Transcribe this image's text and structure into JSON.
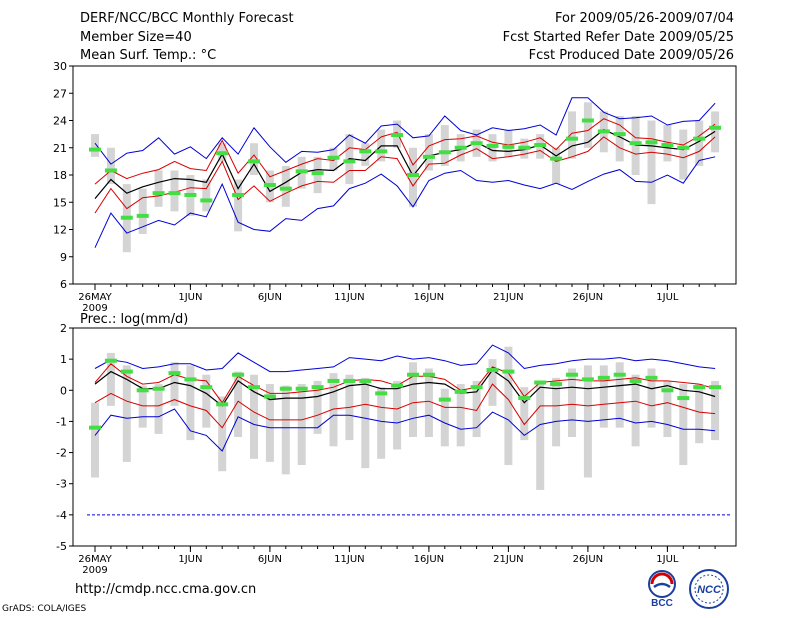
{
  "header": {
    "title": "DERF/NCC/BCC Monthly Forecast",
    "member_size": "Member Size=40",
    "variable": "Mean Surf. Temp.: °C",
    "period": "For 2009/05/26-2009/07/04",
    "started": "Fcst Started Refer Date 2009/05/25",
    "produced": "Fcst Produced Date 2009/05/26"
  },
  "footer": {
    "url": "http://cmdp.ncc.cma.gov.cn",
    "credit": "GrADS: COLA/IGES"
  },
  "logos": {
    "bcc_text": "BCC",
    "ncc_text": "NCC"
  },
  "colors": {
    "envelope": "#0000d8",
    "spread": "#d80000",
    "mean": "#000000",
    "observed": "#44dd44",
    "box": "#d4d4d4"
  },
  "chart_data": [
    {
      "type": "box-ensemble",
      "title": "Mean Surf. Temp.: °C",
      "xlabel_extra": "2009",
      "xlim": [
        0,
        40
      ],
      "ylim": [
        6,
        30
      ],
      "yticks": [
        6,
        9,
        12,
        15,
        18,
        21,
        24,
        27,
        30
      ],
      "xticks": [
        {
          "day": 0,
          "label": "26MAY"
        },
        {
          "day": 6,
          "label": "1JUN"
        },
        {
          "day": 11,
          "label": "6JUN"
        },
        {
          "day": 16,
          "label": "11JUN"
        },
        {
          "day": 21,
          "label": "16JUN"
        },
        {
          "day": 26,
          "label": "21JUN"
        },
        {
          "day": 31,
          "label": "26JUN"
        },
        {
          "day": 36,
          "label": "1JUL"
        }
      ],
      "series": [
        {
          "name": "max",
          "values": [
            10.0,
            13.8,
            11.6,
            12.3,
            13.0,
            12.5,
            13.8,
            13.4,
            17.0,
            12.8,
            12.0,
            11.8,
            13.2,
            13.0,
            14.3,
            14.6,
            16.5,
            17.1,
            18.1,
            16.8,
            14.5,
            17.4,
            18.2,
            18.5,
            17.4,
            17.2,
            17.4,
            16.9,
            16.5,
            17.1,
            16.4,
            17.3,
            18.1,
            18.6,
            17.3,
            17.2,
            18.0,
            17.1,
            19.6,
            20.0
          ]
        },
        {
          "name": "p25",
          "values": [
            13.8,
            16.5,
            14.3,
            15.5,
            15.7,
            16.1,
            16.6,
            16.5,
            19.5,
            15.3,
            16.8,
            15.1,
            16.0,
            16.8,
            17.3,
            17.2,
            18.5,
            18.5,
            20.0,
            19.8,
            16.8,
            19.2,
            19.3,
            20.2,
            20.9,
            19.8,
            20.0,
            20.3,
            20.7,
            19.5,
            20.0,
            20.6,
            22.2,
            21.0,
            20.3,
            20.5,
            20.3,
            19.9,
            20.6,
            22.2
          ]
        },
        {
          "name": "mean",
          "values": [
            15.4,
            17.5,
            16.0,
            16.7,
            17.2,
            17.6,
            17.5,
            17.2,
            20.3,
            16.5,
            19.2,
            16.2,
            17.2,
            18.3,
            18.6,
            18.5,
            19.8,
            19.6,
            21.2,
            21.2,
            17.9,
            20.1,
            20.5,
            20.8,
            21.6,
            20.7,
            20.6,
            20.8,
            21.3,
            20.1,
            21.2,
            21.6,
            23.0,
            22.2,
            21.3,
            21.2,
            21.0,
            20.8,
            21.7,
            22.8
          ]
        },
        {
          "name": "p75",
          "values": [
            17.0,
            18.5,
            17.6,
            18.2,
            18.6,
            19.5,
            18.7,
            18.5,
            21.8,
            18.2,
            20.2,
            17.8,
            18.5,
            19.2,
            19.8,
            19.6,
            21.0,
            20.8,
            22.2,
            22.7,
            19.1,
            21.2,
            21.9,
            22.0,
            22.3,
            21.6,
            21.3,
            21.6,
            22.1,
            20.8,
            22.6,
            22.9,
            24.2,
            23.5,
            22.1,
            22.0,
            21.6,
            21.3,
            22.3,
            23.6
          ]
        },
        {
          "name": "min",
          "values": [
            21.5,
            19.2,
            20.4,
            20.7,
            22.1,
            20.3,
            21.1,
            19.8,
            22.1,
            20.3,
            23.2,
            21.1,
            19.4,
            20.6,
            20.5,
            20.8,
            22.4,
            21.5,
            23.4,
            23.6,
            22.1,
            22.3,
            24.5,
            22.9,
            22.4,
            23.2,
            22.9,
            23.1,
            23.5,
            22.4,
            26.5,
            26.5,
            24.9,
            24.2,
            24.3,
            24.5,
            23.5,
            23.9,
            24.0,
            25.9
          ]
        },
        {
          "name": "observed",
          "values": [
            20.8,
            18.5,
            13.3,
            13.5,
            16.0,
            16.0,
            15.8,
            15.2,
            20.4,
            15.8,
            19.5,
            16.9,
            16.5,
            18.4,
            18.2,
            19.9,
            19.5,
            20.6,
            20.6,
            22.4,
            18.0,
            20.0,
            20.5,
            21.0,
            21.5,
            21.2,
            21.1,
            21.0,
            21.3,
            19.8,
            22.0,
            24.0,
            22.8,
            22.5,
            21.5,
            21.6,
            21.3,
            21.0,
            22.0,
            23.2
          ]
        },
        {
          "name": "box_low",
          "values": [
            20.0,
            17.0,
            9.5,
            11.5,
            14.5,
            14.0,
            13.5,
            14.0,
            19.5,
            11.8,
            18.0,
            15.0,
            14.5,
            16.5,
            16.0,
            18.5,
            17.0,
            19.0,
            19.5,
            21.0,
            14.5,
            18.5,
            19.0,
            19.5,
            20.0,
            19.5,
            20.0,
            19.8,
            19.8,
            17.0,
            19.8,
            21.0,
            20.5,
            19.5,
            18.0,
            14.8,
            19.5,
            17.5,
            19.0,
            20.5
          ]
        },
        {
          "name": "box_high",
          "values": [
            22.5,
            21.0,
            17.0,
            16.5,
            18.5,
            18.5,
            18.0,
            17.5,
            21.5,
            17.5,
            21.5,
            18.5,
            19.0,
            20.0,
            20.0,
            21.0,
            22.5,
            21.5,
            23.0,
            24.0,
            21.0,
            22.5,
            23.5,
            22.5,
            23.0,
            22.5,
            23.0,
            22.0,
            22.5,
            21.0,
            25.0,
            26.0,
            25.0,
            24.5,
            24.5,
            24.0,
            23.5,
            23.0,
            24.0,
            25.0
          ]
        }
      ]
    },
    {
      "type": "box-ensemble",
      "title": "Prec.: log(mm/d)",
      "xlabel_extra": "2009",
      "xlim": [
        0,
        40
      ],
      "ylim": [
        -5,
        2
      ],
      "yticks": [
        -5,
        -4,
        -3,
        -2,
        -1,
        0,
        1,
        2
      ],
      "xticks": [
        {
          "day": 0,
          "label": "26MAY"
        },
        {
          "day": 6,
          "label": "1JUN"
        },
        {
          "day": 11,
          "label": "6JUN"
        },
        {
          "day": 16,
          "label": "11JUN"
        },
        {
          "day": 21,
          "label": "16JUN"
        },
        {
          "day": 26,
          "label": "21JUN"
        },
        {
          "day": 31,
          "label": "26JUN"
        },
        {
          "day": 36,
          "label": "1JUL"
        }
      ],
      "series": [
        {
          "name": "max",
          "values": [
            0.7,
            0.98,
            0.9,
            0.7,
            0.75,
            0.85,
            0.85,
            0.65,
            0.7,
            1.2,
            0.9,
            0.6,
            0.6,
            0.65,
            0.7,
            0.75,
            1.05,
            1.0,
            0.95,
            1.1,
            1.0,
            1.05,
            0.95,
            0.8,
            0.85,
            1.45,
            1.2,
            0.7,
            0.8,
            0.85,
            0.95,
            1.0,
            1.0,
            1.05,
            0.95,
            1.0,
            0.95,
            0.85,
            0.75,
            0.7
          ]
        },
        {
          "name": "p75",
          "values": [
            0.25,
            0.85,
            0.45,
            0.2,
            0.25,
            0.5,
            0.35,
            0.3,
            -0.4,
            0.45,
            0.15,
            -0.1,
            -0.1,
            -0.05,
            0.0,
            0.1,
            0.3,
            0.35,
            0.3,
            0.15,
            0.45,
            0.45,
            0.35,
            0.0,
            0.1,
            0.75,
            0.55,
            -0.2,
            0.25,
            0.3,
            0.35,
            0.3,
            0.3,
            0.35,
            0.4,
            0.3,
            0.3,
            0.25,
            0.2,
            0.05
          ]
        },
        {
          "name": "mean",
          "values": [
            0.2,
            0.6,
            0.35,
            0.05,
            0.05,
            0.25,
            0.15,
            -0.1,
            -0.5,
            0.3,
            -0.05,
            -0.3,
            -0.25,
            -0.25,
            -0.2,
            -0.05,
            0.15,
            0.2,
            0.05,
            0.05,
            0.2,
            0.25,
            0.2,
            -0.1,
            -0.05,
            0.65,
            0.3,
            -0.4,
            0.1,
            0.05,
            0.1,
            0.05,
            0.1,
            0.15,
            0.2,
            0.05,
            0.15,
            0.0,
            -0.05,
            -0.2
          ]
        },
        {
          "name": "p25",
          "values": [
            -0.4,
            -0.1,
            -0.35,
            -0.5,
            -0.5,
            -0.3,
            -0.5,
            -0.65,
            -1.2,
            -0.35,
            -0.7,
            -0.95,
            -0.95,
            -0.95,
            -0.8,
            -0.6,
            -0.55,
            -0.45,
            -0.55,
            -0.6,
            -0.4,
            -0.35,
            -0.55,
            -0.55,
            -0.65,
            0.2,
            -0.3,
            -1.1,
            -0.5,
            -0.5,
            -0.45,
            -0.5,
            -0.45,
            -0.4,
            -0.35,
            -0.5,
            -0.4,
            -0.55,
            -0.7,
            -0.75
          ]
        },
        {
          "name": "min",
          "values": [
            -1.45,
            -0.8,
            -0.9,
            -0.85,
            -0.85,
            -0.6,
            -1.3,
            -1.45,
            -1.95,
            -0.85,
            -1.1,
            -1.2,
            -1.2,
            -1.2,
            -1.2,
            -0.8,
            -0.8,
            -0.9,
            -1.0,
            -1.05,
            -0.9,
            -0.8,
            -1.05,
            -1.25,
            -1.2,
            -0.7,
            -0.95,
            -1.45,
            -1.1,
            -1.0,
            -0.95,
            -1.0,
            -0.95,
            -0.9,
            -1.05,
            -1.0,
            -1.1,
            -1.25,
            -1.25,
            -1.3
          ]
        },
        {
          "name": "observed",
          "values": [
            -1.2,
            0.95,
            0.6,
            0.0,
            0.05,
            0.55,
            0.35,
            0.1,
            -0.45,
            0.5,
            0.1,
            -0.2,
            0.05,
            0.05,
            0.1,
            0.3,
            0.3,
            0.3,
            -0.1,
            0.15,
            0.5,
            0.5,
            -0.3,
            -0.05,
            0.1,
            0.65,
            0.6,
            -0.25,
            0.25,
            0.2,
            0.5,
            0.35,
            0.4,
            0.5,
            0.3,
            0.4,
            0.0,
            -0.25,
            0.1,
            0.1
          ]
        },
        {
          "name": "box_low",
          "values": [
            -2.8,
            -0.5,
            -2.3,
            -1.2,
            -1.4,
            -0.5,
            -1.6,
            -1.2,
            -2.6,
            -1.5,
            -2.2,
            -2.3,
            -2.7,
            -2.4,
            -1.4,
            -1.8,
            -1.6,
            -2.5,
            -2.2,
            -1.9,
            -1.5,
            -1.5,
            -1.8,
            -1.8,
            -1.5,
            -0.5,
            -2.4,
            -1.6,
            -3.2,
            -1.8,
            -1.5,
            -2.8,
            -1.2,
            -1.2,
            -1.8,
            -1.2,
            -1.5,
            -2.4,
            -1.7,
            -1.6
          ]
        },
        {
          "name": "box_high",
          "values": [
            -0.4,
            1.2,
            0.8,
            0.15,
            0.2,
            0.9,
            0.8,
            0.5,
            -0.2,
            0.6,
            0.5,
            0.2,
            0.15,
            0.2,
            0.3,
            0.55,
            0.5,
            0.4,
            0.1,
            0.3,
            0.9,
            0.7,
            0.05,
            0.2,
            0.3,
            1.0,
            1.4,
            0.1,
            0.3,
            0.4,
            0.7,
            0.8,
            0.8,
            0.9,
            0.5,
            0.7,
            0.3,
            0.2,
            0.2,
            0.3
          ]
        }
      ]
    }
  ]
}
